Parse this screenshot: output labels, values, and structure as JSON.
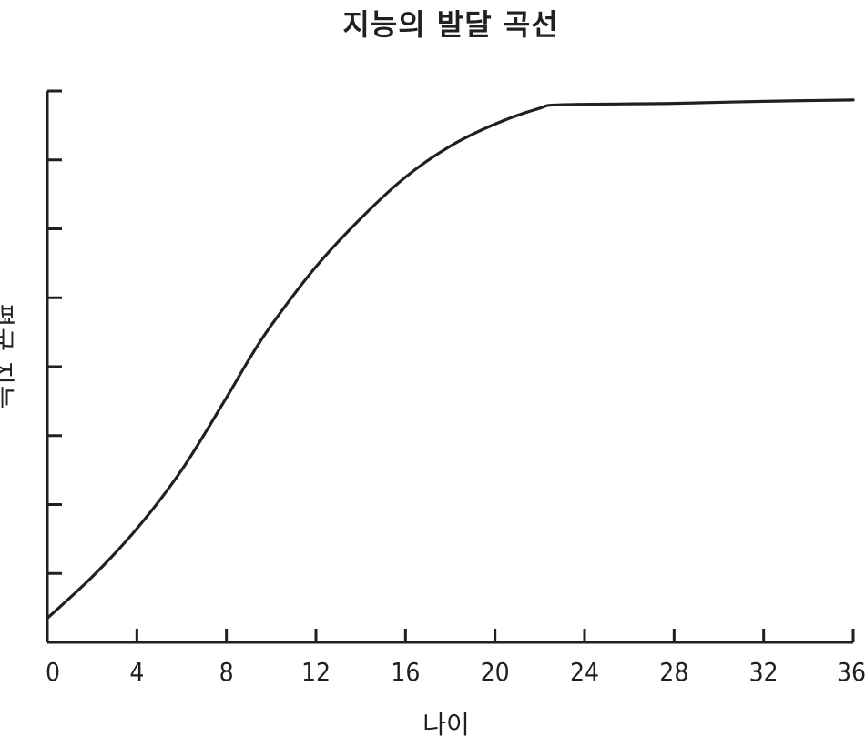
{
  "chart_data": {
    "type": "line",
    "title": "지능의 발달 곡선",
    "xlabel": "나이",
    "ylabel": "평균 지능",
    "xlim": [
      0,
      36
    ],
    "ylim": [
      0,
      8
    ],
    "x_ticks": [
      0,
      4,
      8,
      12,
      16,
      20,
      24,
      28,
      32,
      36
    ],
    "x_tick_labels": [
      "0",
      "4",
      "8",
      "12",
      "16",
      "20",
      "24",
      "28",
      "32",
      "36"
    ],
    "y_ticks": [
      1,
      2,
      3,
      4,
      5,
      6,
      7,
      8
    ],
    "y_tick_labels_visible": false,
    "grid": false,
    "series": [
      {
        "color": "#231f20",
        "x": [
          0,
          2,
          4,
          6,
          8,
          9,
          10,
          12,
          14,
          16,
          18,
          20,
          22,
          23,
          28,
          32,
          36
        ],
        "y": [
          0.35,
          0.95,
          1.65,
          2.5,
          3.55,
          4.1,
          4.6,
          5.45,
          6.15,
          6.75,
          7.2,
          7.52,
          7.75,
          7.8,
          7.82,
          7.85,
          7.87
        ]
      }
    ]
  }
}
